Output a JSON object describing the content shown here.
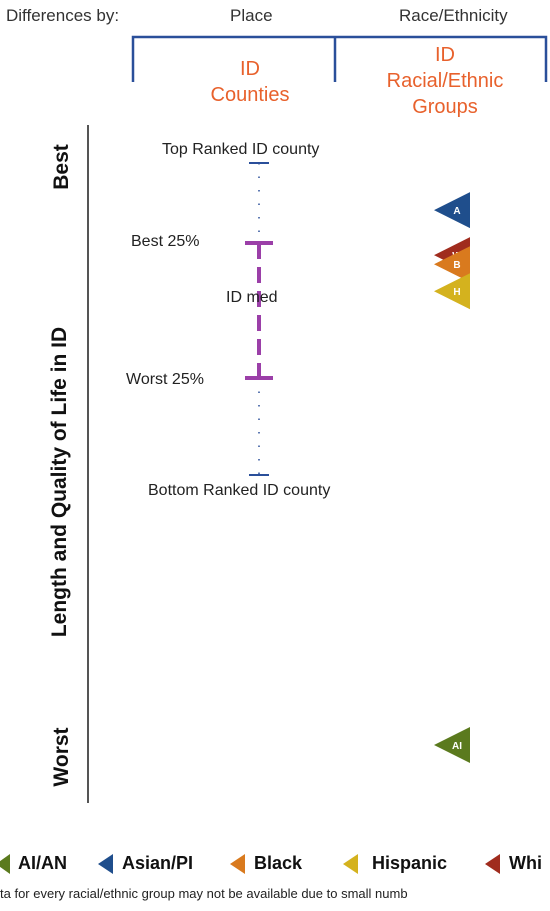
{
  "header": {
    "differences_label": "Differences by:",
    "place_label": "Place",
    "race_label": "Race/Ethnicity",
    "place_group": [
      "ID",
      "Counties"
    ],
    "race_group": [
      "ID",
      "Racial/Ethnic",
      "Groups"
    ]
  },
  "axis": {
    "title": "Length and Quality of Life in ID",
    "top": "Best",
    "bottom": "Worst"
  },
  "chart_data": {
    "type": "scatter",
    "orientation": "vertical rank scale (Best at top, Worst at bottom)",
    "county_distribution": {
      "labels": {
        "top": "Top Ranked ID county",
        "best25": "Best 25%",
        "median": "ID med",
        "worst25": "Worst 25%",
        "bottom": "Bottom Ranked ID county"
      }
    },
    "groups": [
      {
        "name": "Asian/PI",
        "marker": "A",
        "color": "#1f4e8c",
        "relative_position": 0.1
      },
      {
        "name": "White",
        "marker": "W",
        "color": "#a02c1e",
        "relative_position": 0.175
      },
      {
        "name": "Black",
        "marker": "B",
        "color": "#d97a1e",
        "relative_position": 0.19
      },
      {
        "name": "Hispanic",
        "marker": "H",
        "color": "#d4b21e",
        "relative_position": 0.235
      },
      {
        "name": "AI/AN",
        "marker": "AI",
        "color": "#5b7a1e",
        "relative_position": 0.99
      }
    ]
  },
  "legend": [
    {
      "label": "AI/AN",
      "color": "#5b7a1e"
    },
    {
      "label": "Asian/PI",
      "color": "#1f4e8c"
    },
    {
      "label": "Black",
      "color": "#d97a1e"
    },
    {
      "label": "Hispanic",
      "color": "#d4b21e"
    },
    {
      "label": "Whi",
      "color": "#a02c1e"
    }
  ],
  "footnote": "ta for every racial/ethnic group may not be available due to small numb"
}
